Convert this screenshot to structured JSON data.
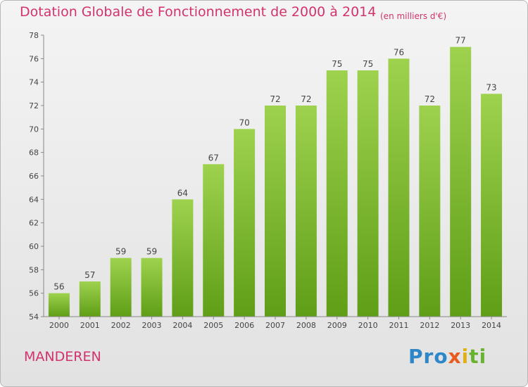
{
  "chart_data": {
    "type": "bar",
    "title": "Dotation Globale de Fonctionnement de 2000 à 2014",
    "subtitle": "(en milliers d'€)",
    "categories": [
      "2000",
      "2001",
      "2002",
      "2003",
      "2004",
      "2005",
      "2006",
      "2007",
      "2008",
      "2009",
      "2010",
      "2011",
      "2012",
      "2013",
      "2014"
    ],
    "values": [
      56,
      57,
      59,
      59,
      64,
      67,
      70,
      72,
      72,
      75,
      75,
      76,
      72,
      77,
      73
    ],
    "data_labels": [
      "56",
      "57",
      "59",
      "59",
      "64",
      "67",
      "70",
      "72",
      "72",
      "75",
      "75",
      "76",
      "72",
      "77",
      "73"
    ],
    "ylim": [
      54,
      78
    ],
    "yticks": [
      54,
      56,
      58,
      60,
      62,
      64,
      66,
      68,
      70,
      72,
      74,
      76,
      78
    ],
    "xlabel": "",
    "ylabel": "",
    "grid": false,
    "colors": {
      "bar_light": "#9ed24e",
      "bar_dark": "#5f9e17",
      "title": "#d2336e",
      "axis": "#888888"
    }
  },
  "commune": "MANDEREN",
  "logo": {
    "part1": "Pro",
    "part2": "x",
    "part3": "i",
    "part4": "ti"
  }
}
